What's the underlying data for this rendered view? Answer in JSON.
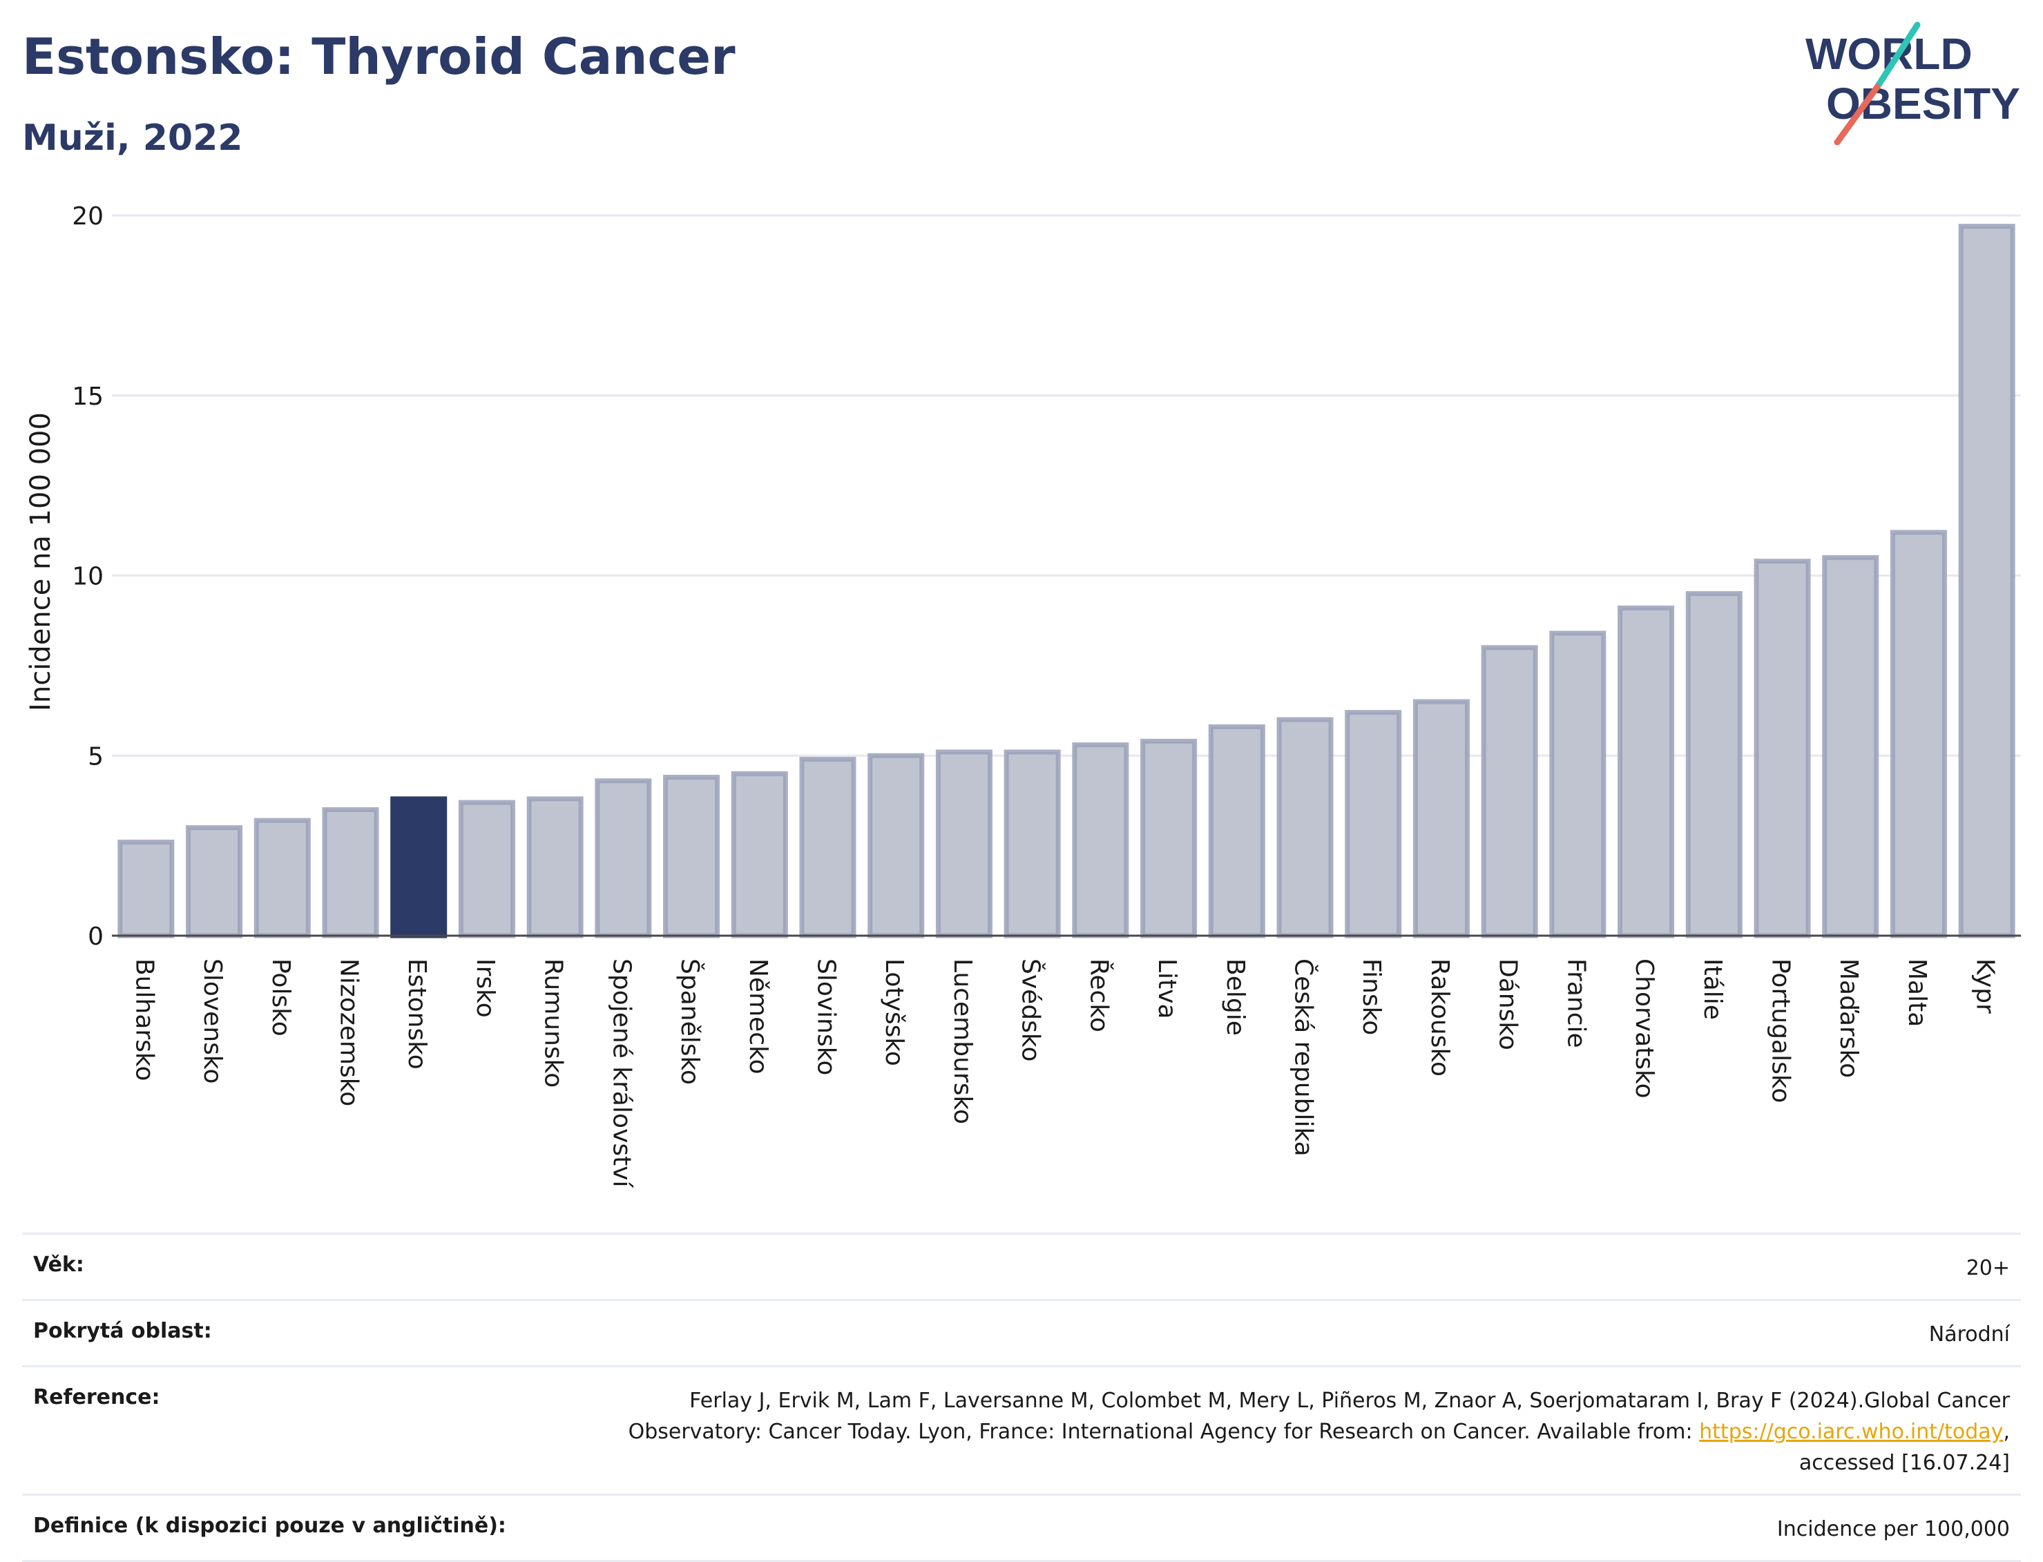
{
  "header": {
    "title": "Estonsko: Thyroid Cancer",
    "subtitle": "Muži, 2022",
    "logo_line1": "WORLD",
    "logo_line2": "OBESITY"
  },
  "colors": {
    "bar": "#c0c4d1",
    "bar_edge": "#9aa1b9",
    "highlight": "#2b3a67",
    "title": "#2b3a67",
    "logo_teal": "#2ec4b6",
    "logo_red": "#e8685a"
  },
  "chart_data": {
    "type": "bar",
    "ylabel": "Incidence na 100 000",
    "ylim": [
      0,
      20
    ],
    "yticks": [
      0,
      5,
      10,
      15,
      20
    ],
    "grid": true,
    "highlight": "Estonsko",
    "categories": [
      "Bulharsko",
      "Slovensko",
      "Polsko",
      "Nizozemsko",
      "Estonsko",
      "Irsko",
      "Rumunsko",
      "Spojené království",
      "Španělsko",
      "Německo",
      "Slovinsko",
      "Lotyšsko",
      "Lucembursko",
      "Švédsko",
      "Řecko",
      "Litva",
      "Belgie",
      "Česká republika",
      "Finsko",
      "Rakousko",
      "Dánsko",
      "Francie",
      "Chorvatsko",
      "Itálie",
      "Portugalsko",
      "Maďarsko",
      "Malta",
      "Kypr"
    ],
    "values": [
      2.6,
      3.0,
      3.2,
      3.5,
      3.8,
      3.7,
      3.8,
      4.3,
      4.4,
      4.5,
      4.9,
      5.0,
      5.1,
      5.1,
      5.3,
      5.4,
      5.8,
      6.0,
      6.2,
      6.5,
      8.0,
      8.4,
      9.1,
      9.5,
      10.4,
      10.5,
      11.2,
      19.7
    ]
  },
  "info": {
    "age_label": "Věk:",
    "age_value": "20+",
    "coverage_label": "Pokrytá oblast:",
    "coverage_value": "Národní",
    "reference_label": "Reference:",
    "reference_text": "Ferlay J, Ervik M, Lam F, Laversanne M, Colombet M, Mery L, Piñeros M, Znaor A, Soerjomataram I, Bray F (2024).Global Cancer Observatory: Cancer Today. Lyon, France: International Agency for Research on Cancer. Available from:",
    "reference_link": "https://gco.iarc.who.int/today",
    "reference_suffix": ", accessed [16.07.24]",
    "definition_label": "Definice (k dispozici pouze v angličtině):",
    "definition_value": "Incidence per 100,000"
  }
}
